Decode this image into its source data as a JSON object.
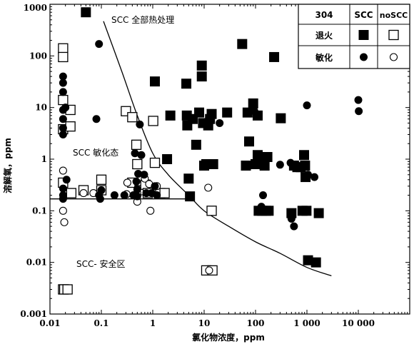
{
  "chart_data": {
    "type": "scatter",
    "xlabel": "氯化物浓度，ppm",
    "ylabel": "溶解氧，ppm",
    "xscale": "log",
    "yscale": "log",
    "xlim": [
      0.01,
      100000
    ],
    "ylim": [
      0.001,
      1000
    ],
    "x_tick_labels": [
      "0.01",
      "0.1",
      "1",
      "10",
      "100",
      "1 000",
      "10 000"
    ],
    "y_tick_labels": [
      "0.001",
      "0.01",
      "0.1",
      "1",
      "10",
      "100",
      "1000"
    ],
    "annotations": [
      "SCC 全部热处理",
      "SCC 敏化态",
      "SCC- 安全区"
    ],
    "legend": {
      "placement": "top-right",
      "header": [
        "304",
        "SCC",
        "noSCC"
      ],
      "rows": [
        "退火",
        "敏化"
      ]
    },
    "series": [
      {
        "name": "退火 SCC",
        "marker": "filled-square",
        "points": [
          [
            0.05,
            700
          ],
          [
            1.1,
            32
          ],
          [
            1.9,
            1.0
          ],
          [
            2.2,
            7
          ],
          [
            4.5,
            29
          ],
          [
            4.6,
            7
          ],
          [
            4.7,
            4.5
          ],
          [
            5,
            0.42
          ],
          [
            5.3,
            0.19
          ],
          [
            6,
            6
          ],
          [
            7,
            1.9
          ],
          [
            8,
            8
          ],
          [
            9,
            65
          ],
          [
            9,
            40
          ],
          [
            9.5,
            5
          ],
          [
            10,
            0.75
          ],
          [
            11,
            0.8
          ],
          [
            12,
            4.5
          ],
          [
            13,
            6
          ],
          [
            14,
            7.5
          ],
          [
            15,
            0.8
          ],
          [
            28,
            8
          ],
          [
            55,
            170
          ],
          [
            65,
            0.75
          ],
          [
            70,
            8
          ],
          [
            75,
            2.2
          ],
          [
            90,
            12
          ],
          [
            100,
            0.8
          ],
          [
            110,
            1.2
          ],
          [
            110,
            7
          ],
          [
            115,
            0.1
          ],
          [
            135,
            0.1
          ],
          [
            140,
            1.1
          ],
          [
            150,
            0.75
          ],
          [
            160,
            0.1
          ],
          [
            170,
            1.1
          ],
          [
            180,
            0.1
          ],
          [
            230,
            95
          ],
          [
            310,
            6.2
          ],
          [
            500,
            0.09
          ],
          [
            560,
            0.75
          ],
          [
            650,
            0.7
          ],
          [
            760,
            0.7
          ],
          [
            820,
            0.1
          ],
          [
            880,
            1.2
          ],
          [
            920,
            0.75
          ],
          [
            940,
            0.45
          ],
          [
            980,
            0.1
          ],
          [
            1050,
            0.011
          ],
          [
            1500,
            0.01
          ],
          [
            1700,
            0.09
          ]
        ]
      },
      {
        "name": "退火 noSCC",
        "marker": "open-square",
        "points": [
          [
            0.018,
            140
          ],
          [
            0.018,
            95
          ],
          [
            0.018,
            14
          ],
          [
            0.018,
            3.8
          ],
          [
            0.018,
            0.35
          ],
          [
            0.018,
            0.003
          ],
          [
            0.019,
            0.003
          ],
          [
            0.022,
            0.003
          ],
          [
            0.025,
            9
          ],
          [
            0.025,
            4.3
          ],
          [
            0.026,
            0.22
          ],
          [
            0.045,
            0.25
          ],
          [
            0.1,
            0.4
          ],
          [
            0.1,
            0.25
          ],
          [
            0.3,
            8.5
          ],
          [
            0.4,
            6.5
          ],
          [
            0.4,
            0.35
          ],
          [
            0.48,
            1.9
          ],
          [
            0.5,
            0.8
          ],
          [
            0.55,
            0.25
          ],
          [
            0.72,
            0.32
          ],
          [
            0.8,
            0.22
          ],
          [
            1.02,
            5.5
          ],
          [
            1.1,
            0.85
          ],
          [
            1.4,
            0.22
          ],
          [
            1.7,
            0.22
          ],
          [
            11,
            0.007
          ],
          [
            14,
            0.1
          ],
          [
            14.5,
            0.007
          ]
        ]
      },
      {
        "name": "敏化 SCC",
        "marker": "filled-circle",
        "points": [
          [
            0.018,
            40
          ],
          [
            0.018,
            30
          ],
          [
            0.018,
            20
          ],
          [
            0.018,
            9
          ],
          [
            0.018,
            6
          ],
          [
            0.018,
            4
          ],
          [
            0.018,
            3
          ],
          [
            0.018,
            0.27
          ],
          [
            0.018,
            0.2
          ],
          [
            0.018,
            0.17
          ],
          [
            0.02,
            10
          ],
          [
            0.021,
            0.4
          ],
          [
            0.08,
            6
          ],
          [
            0.09,
            170
          ],
          [
            0.09,
            0.2
          ],
          [
            0.095,
            0.17
          ],
          [
            0.1,
            0.25
          ],
          [
            0.18,
            0.2
          ],
          [
            0.28,
            0.2
          ],
          [
            0.42,
            0.2
          ],
          [
            0.45,
            1.3
          ],
          [
            0.48,
            0.37
          ],
          [
            0.5,
            0.26
          ],
          [
            0.5,
            0.19
          ],
          [
            0.52,
            0.52
          ],
          [
            0.56,
            4.7
          ],
          [
            0.6,
            1.2
          ],
          [
            0.68,
            0.5
          ],
          [
            0.75,
            0.22
          ],
          [
            0.95,
            0.22
          ],
          [
            1.1,
            0.3
          ],
          [
            1.2,
            0.2
          ],
          [
            20,
            5
          ],
          [
            95,
            8.5
          ],
          [
            130,
            0.12
          ],
          [
            140,
            0.2
          ],
          [
            300,
            0.78
          ],
          [
            480,
            0.85
          ],
          [
            500,
            0.07
          ],
          [
            560,
            0.05
          ],
          [
            900,
            0.78
          ],
          [
            1000,
            11
          ],
          [
            1050,
            0.5
          ],
          [
            1400,
            0.45
          ],
          [
            10000,
            14
          ],
          [
            10200,
            8.5
          ]
        ]
      },
      {
        "name": "敏化 noSCC",
        "marker": "open-circle",
        "points": [
          [
            0.018,
            0.6
          ],
          [
            0.018,
            0.1
          ],
          [
            0.019,
            0.06
          ],
          [
            0.045,
            0.22
          ],
          [
            0.07,
            0.22
          ],
          [
            0.31,
            0.21
          ],
          [
            0.32,
            0.35
          ],
          [
            0.5,
            0.15
          ],
          [
            0.5,
            0.22
          ],
          [
            0.7,
            0.42
          ],
          [
            0.85,
            0.33
          ],
          [
            0.9,
            0.1
          ],
          [
            1.2,
            0.3
          ],
          [
            12,
            0.28
          ],
          [
            12.5,
            0.007
          ]
        ]
      }
    ],
    "threshold_lines": [
      {
        "name": "SCC boundary curve",
        "x": [
          0.11,
          0.25,
          0.5,
          1,
          2,
          5,
          10,
          30,
          100,
          300,
          1000,
          3000
        ],
        "y": [
          470,
          50,
          7,
          1.3,
          0.5,
          0.2,
          0.1,
          0.05,
          0.025,
          0.015,
          0.008,
          0.0055
        ]
      },
      {
        "name": "0.17 ppm oxygen line",
        "x": [
          0.01,
          5
        ],
        "y": [
          0.17,
          0.17
        ]
      }
    ]
  }
}
